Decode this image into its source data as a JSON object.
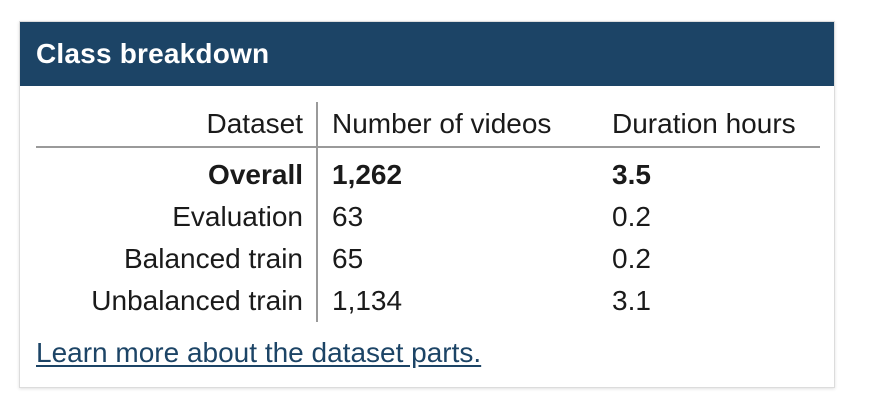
{
  "card": {
    "title": "Class breakdown",
    "header_color": "#1c4466"
  },
  "table": {
    "headers": {
      "dataset": "Dataset",
      "videos": "Number of videos",
      "duration": "Duration hours"
    },
    "rows": [
      {
        "dataset": "Overall",
        "videos": "1,262",
        "duration": "3.5",
        "bold": true
      },
      {
        "dataset": "Evaluation",
        "videos": "63",
        "duration": "0.2",
        "bold": false
      },
      {
        "dataset": "Balanced train",
        "videos": "65",
        "duration": "0.2",
        "bold": false
      },
      {
        "dataset": "Unbalanced train",
        "videos": "1,134",
        "duration": "3.1",
        "bold": false
      }
    ]
  },
  "footer": {
    "link_text": "Learn more about the dataset parts.",
    "link_color": "#1c4466"
  }
}
